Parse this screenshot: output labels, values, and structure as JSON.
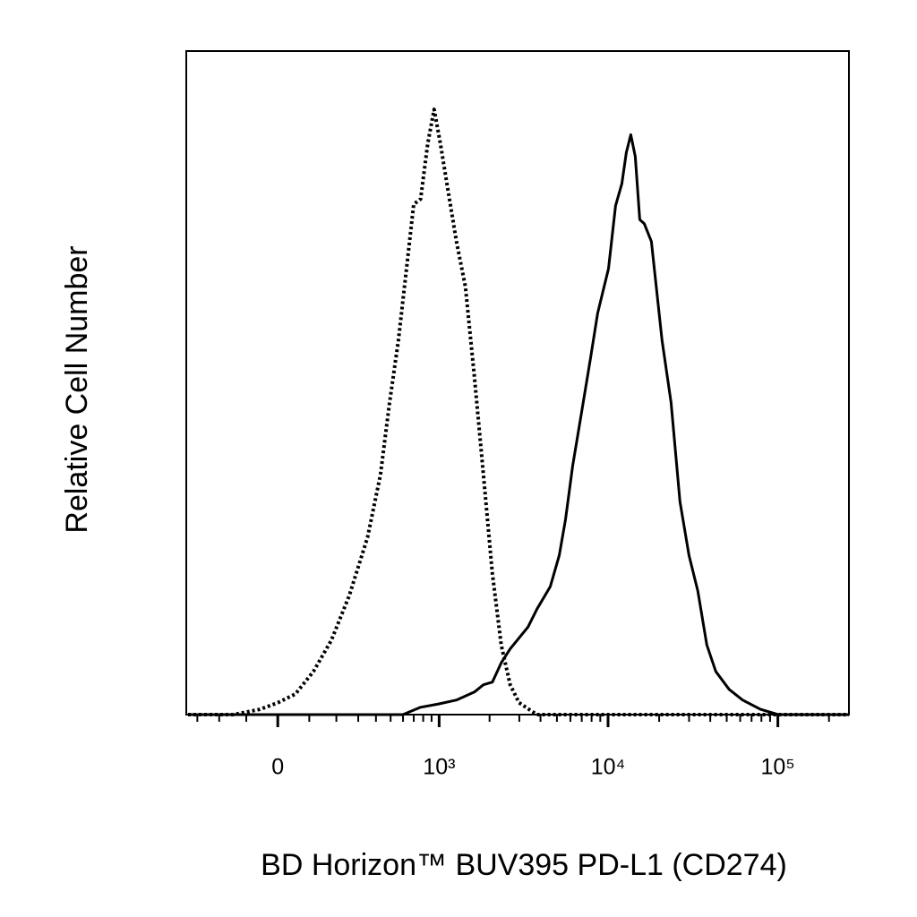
{
  "chart_data": {
    "type": "line",
    "x_label": "BD Horizon™ BUV395 PD-L1 (CD274)",
    "y_label": "Relative Cell Number",
    "xscale": "biexponential",
    "xlim": [
      -360,
      262144
    ],
    "ylim": [
      0,
      100
    ],
    "xticks": [
      0,
      {
        "value": 1000,
        "label": "10³"
      },
      {
        "value": 10000,
        "label": "10⁴"
      },
      {
        "value": 100000,
        "label": "10⁵"
      }
    ],
    "xminorticks": [
      -300,
      -200,
      -100,
      100,
      200,
      300,
      400,
      500,
      600,
      700,
      800,
      900,
      2000,
      3000,
      4000,
      5000,
      6000,
      7000,
      8000,
      9000,
      20000,
      30000,
      40000,
      50000,
      60000,
      70000,
      80000,
      90000,
      200000
    ],
    "series": [
      {
        "style": "dotted",
        "color": "#000000",
        "x": [
          -350,
          -146,
          -55,
          0,
          55,
          114,
          180,
          256,
          350,
          429,
          492,
          561,
          640,
          700,
          772,
          853,
          933,
          1017,
          1124,
          1271,
          1437,
          1625,
          1839,
          2077,
          2345,
          2647,
          2987,
          3813,
          262144
        ],
        "values": [
          0,
          0,
          0.8,
          1.8,
          3.1,
          6.5,
          11.2,
          17.9,
          26.7,
          36.2,
          47.0,
          56.4,
          68.6,
          76.9,
          77.7,
          86.1,
          91.2,
          86.1,
          79.4,
          71.3,
          64.5,
          51.0,
          36.2,
          21.3,
          10.5,
          4.5,
          1.8,
          0,
          0
        ]
      },
      {
        "style": "solid",
        "color": "#000000",
        "x": [
          -350,
          599,
          772,
          992,
          1271,
          1625,
          1839,
          2077,
          2345,
          2647,
          3373,
          3813,
          4570,
          5158,
          5616,
          6193,
          6988,
          7880,
          8690,
          10060,
          11080,
          12060,
          12820,
          13620,
          14470,
          15370,
          16330,
          18000,
          20800,
          23500,
          26530,
          29960,
          33820,
          38170,
          43090,
          51670,
          61970,
          79000,
          100600,
          262144
        ],
        "values": [
          0,
          0,
          1.1,
          1.6,
          2.2,
          3.4,
          4.5,
          4.9,
          7.8,
          9.9,
          13.2,
          15.9,
          19.3,
          24.0,
          29.4,
          37.5,
          45.6,
          53.7,
          60.5,
          67.2,
          76.7,
          80.0,
          84.7,
          87.4,
          84.1,
          74.6,
          74.0,
          71.3,
          56.4,
          47.0,
          32.1,
          24.0,
          18.6,
          10.5,
          6.5,
          3.8,
          2.2,
          0.8,
          0,
          0
        ]
      }
    ]
  }
}
